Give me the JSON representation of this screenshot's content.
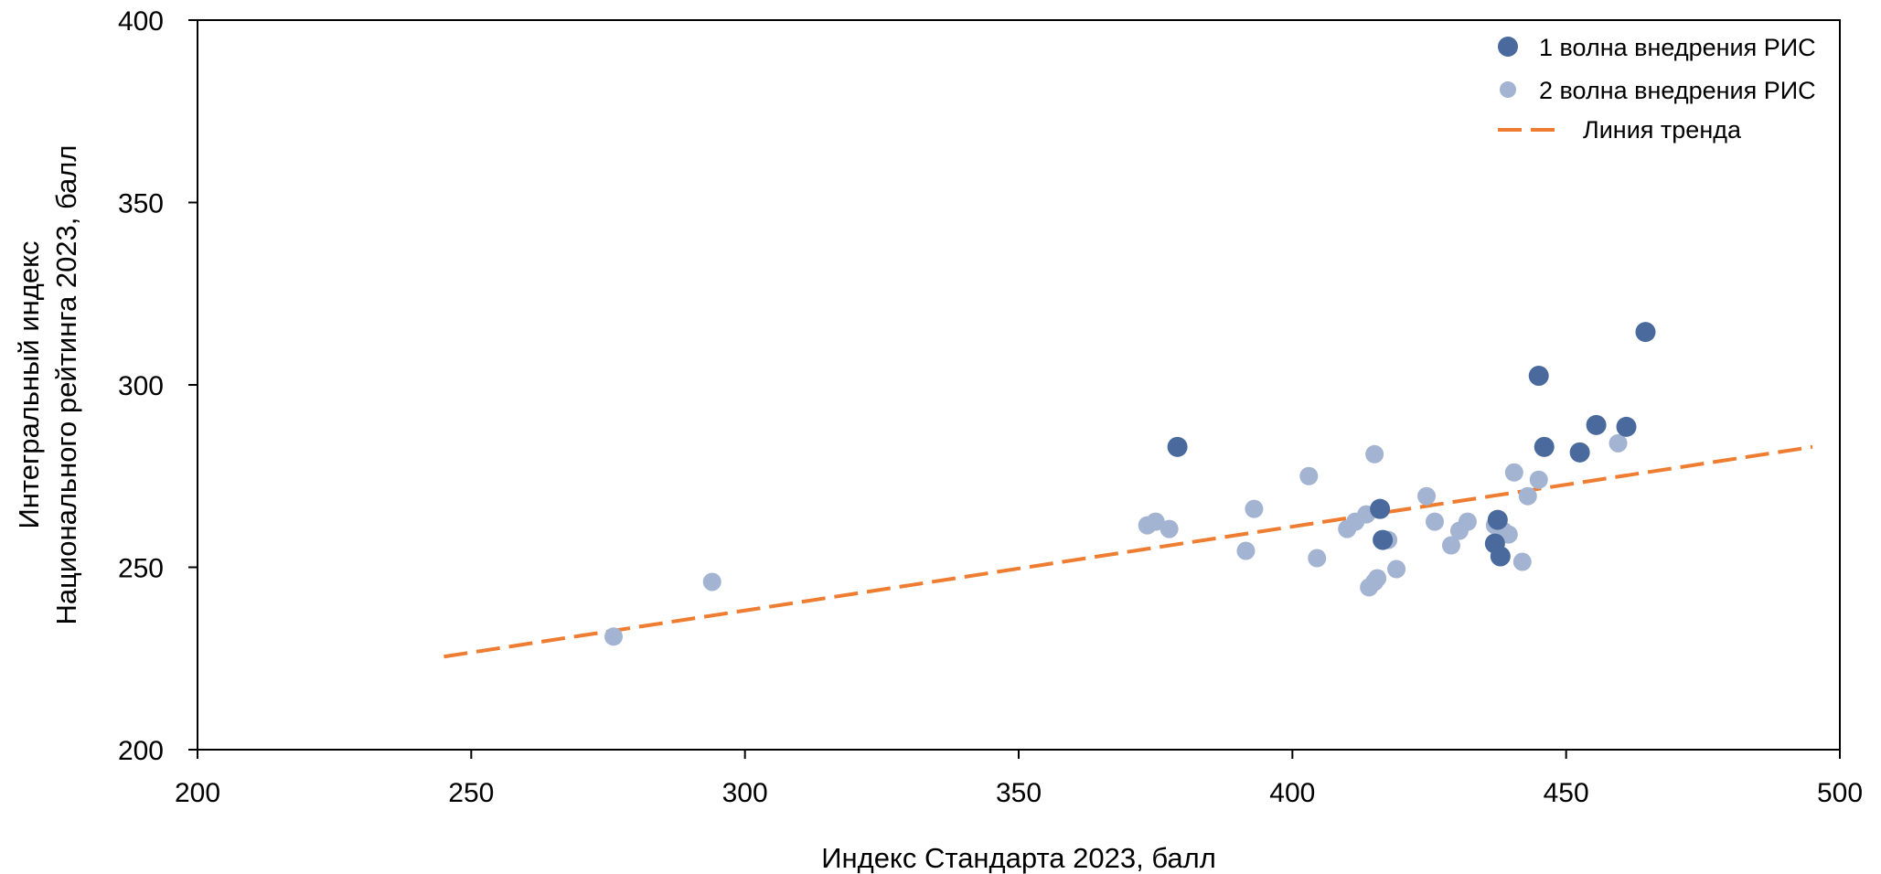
{
  "chart_data": {
    "type": "scatter",
    "title": "",
    "xlabel": "Индекс Стандарта 2023, балл",
    "ylabel": [
      "Интегральный индекс",
      "Национального рейтинга 2023, балл"
    ],
    "xlim": [
      200,
      500
    ],
    "ylim": [
      200,
      400
    ],
    "xticks": [
      200,
      250,
      300,
      350,
      400,
      450,
      500
    ],
    "yticks": [
      200,
      250,
      300,
      350,
      400
    ],
    "grid": false,
    "legend_position": "top-right",
    "series": [
      {
        "name": "1 волна внедрения РИС",
        "color": "#4a6a9d",
        "points": [
          [
            379,
            283
          ],
          [
            416,
            266
          ],
          [
            416.5,
            257.5
          ],
          [
            437.5,
            263
          ],
          [
            437,
            256.5
          ],
          [
            438,
            253
          ],
          [
            445,
            302.5
          ],
          [
            446,
            283
          ],
          [
            452.5,
            281.5
          ],
          [
            455.5,
            289
          ],
          [
            461,
            288.5
          ],
          [
            464.5,
            314.5
          ]
        ]
      },
      {
        "name": "2 волна внедрения РИС",
        "color": "#a3b3d2",
        "points": [
          [
            276,
            231
          ],
          [
            294,
            246
          ],
          [
            373.5,
            261.5
          ],
          [
            375,
            262.5
          ],
          [
            377.5,
            260.5
          ],
          [
            391.5,
            254.5
          ],
          [
            393,
            266
          ],
          [
            403,
            275
          ],
          [
            404.5,
            252.5
          ],
          [
            410,
            260.5
          ],
          [
            411.5,
            262.5
          ],
          [
            413.5,
            264.5
          ],
          [
            414,
            244.5
          ],
          [
            415,
            246
          ],
          [
            415.5,
            247
          ],
          [
            415,
            281
          ],
          [
            417.5,
            257.5
          ],
          [
            419,
            249.5
          ],
          [
            424.5,
            269.5
          ],
          [
            426,
            262.5
          ],
          [
            429,
            256
          ],
          [
            430.5,
            260
          ],
          [
            432,
            262.5
          ],
          [
            437,
            261.5
          ],
          [
            438.5,
            260
          ],
          [
            439.5,
            259
          ],
          [
            440.5,
            276
          ],
          [
            442,
            251.5
          ],
          [
            443,
            269.5
          ],
          [
            445,
            274
          ],
          [
            459.5,
            284
          ]
        ]
      }
    ],
    "trendline": {
      "name": "Линия тренда",
      "color": "#ee7d31",
      "x": [
        245,
        495
      ],
      "y": [
        225.5,
        283
      ]
    }
  }
}
